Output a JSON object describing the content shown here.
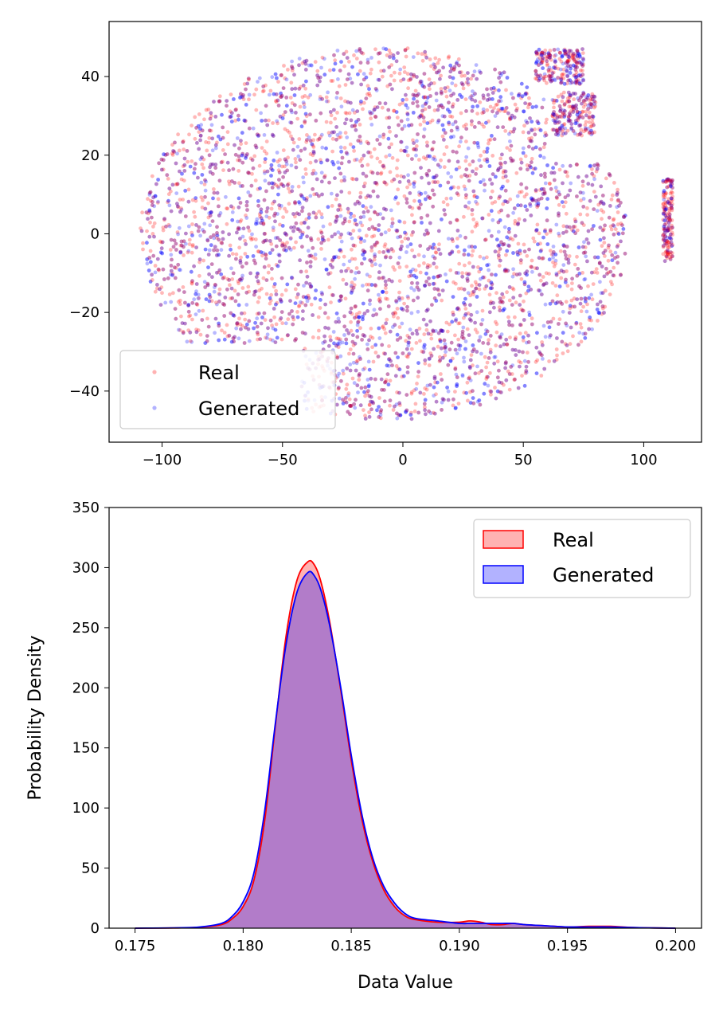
{
  "chart_data": [
    {
      "type": "scatter",
      "title": "",
      "xlabel": "",
      "ylabel": "",
      "xlim": [
        -122,
        124
      ],
      "ylim": [
        -53,
        54
      ],
      "xticks": [
        -100,
        -50,
        0,
        50,
        100
      ],
      "xtick_labels": [
        "−100",
        "−50",
        "0",
        "50",
        "100"
      ],
      "yticks": [
        -40,
        -20,
        0,
        20,
        40
      ],
      "ytick_labels": [
        "−40",
        "−20",
        "0",
        "20",
        "40"
      ],
      "legend_position": "lower-left",
      "series": [
        {
          "name": "Real",
          "color": "#ff0000",
          "approx_points": 3000
        },
        {
          "name": "Generated",
          "color": "#0000ff",
          "approx_points": 3000
        }
      ],
      "cluster_regions": [
        {
          "shape": "main-blob",
          "x_range": [
            -110,
            95
          ],
          "y_range": [
            -48,
            48
          ]
        },
        {
          "shape": "cluster",
          "x_range": [
            55,
            75
          ],
          "y_range": [
            38,
            47
          ]
        },
        {
          "shape": "cluster",
          "x_range": [
            62,
            80
          ],
          "y_range": [
            25,
            36
          ]
        },
        {
          "shape": "cluster",
          "x_range": [
            108,
            112
          ],
          "y_range": [
            -7,
            14
          ]
        }
      ]
    },
    {
      "type": "area",
      "title": "",
      "xlabel": "Data Value",
      "ylabel": "Probability Density",
      "xlim": [
        0.1738,
        0.2012
      ],
      "ylim": [
        0,
        350
      ],
      "xticks": [
        0.175,
        0.18,
        0.185,
        0.19,
        0.195,
        0.2
      ],
      "xtick_labels": [
        "0.175",
        "0.180",
        "0.185",
        "0.190",
        "0.195",
        "0.200"
      ],
      "yticks": [
        0,
        50,
        100,
        150,
        200,
        250,
        300,
        350
      ],
      "ytick_labels": [
        "0",
        "50",
        "100",
        "150",
        "200",
        "250",
        "300",
        "350"
      ],
      "legend_position": "top-right",
      "x": [
        0.175,
        0.177,
        0.178,
        0.179,
        0.1795,
        0.18,
        0.1805,
        0.181,
        0.1815,
        0.182,
        0.1825,
        0.183,
        0.1833,
        0.1836,
        0.184,
        0.1845,
        0.185,
        0.1855,
        0.186,
        0.1865,
        0.187,
        0.1875,
        0.188,
        0.189,
        0.19,
        0.1905,
        0.191,
        0.1915,
        0.192,
        0.1925,
        0.193,
        0.194,
        0.195,
        0.196,
        0.197,
        0.198,
        0.199,
        0.2
      ],
      "series": [
        {
          "name": "Real",
          "color": "#ff0000",
          "values": [
            0,
            0.2,
            0.8,
            3,
            8,
            18,
            40,
            90,
            170,
            245,
            290,
            305,
            302,
            288,
            255,
            200,
            140,
            90,
            55,
            32,
            18,
            10,
            7,
            5,
            5,
            6,
            5,
            3,
            3,
            4,
            3,
            2,
            1,
            1.5,
            1.5,
            0.5,
            0.2,
            0
          ]
        },
        {
          "name": "Generated",
          "color": "#0000ff",
          "values": [
            0,
            0.3,
            1,
            4,
            10,
            22,
            46,
            98,
            172,
            238,
            280,
            296,
            293,
            281,
            252,
            202,
            144,
            94,
            58,
            35,
            21,
            12,
            8,
            6,
            4,
            4,
            4,
            4,
            4,
            4,
            3,
            2,
            1,
            1,
            1,
            0.5,
            0.2,
            0
          ]
        }
      ]
    }
  ]
}
